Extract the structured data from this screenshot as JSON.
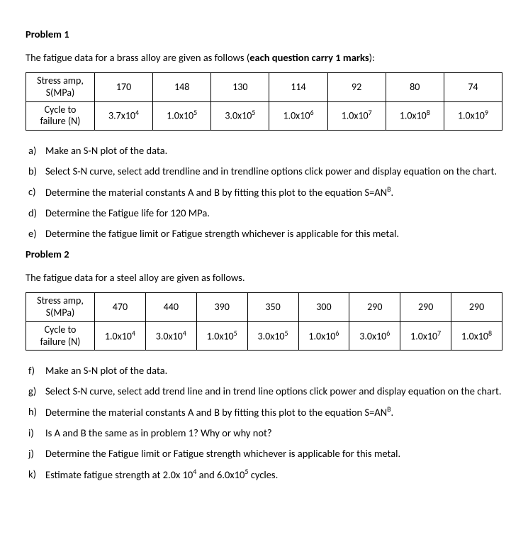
{
  "problem1": {
    "title": "Problem 1",
    "intro_pre": "The fatigue data for a brass alloy are given as follows (",
    "intro_bold": "each question carry 1 marks",
    "intro_post": "):",
    "table": {
      "row1_label_line1": "Stress amp,",
      "row1_label_line2": "S(MPa)",
      "row2_label_line1": "Cycle to",
      "row2_label_line2": "failure (N)",
      "stress": [
        "170",
        "148",
        "130",
        "114",
        "92",
        "80",
        "74"
      ],
      "cycles_base": [
        "3.7x10",
        "1.0x10",
        "3.0x10",
        "1.0x10",
        "1.0x10",
        "1.0x10",
        "1.0x10"
      ],
      "cycles_exp": [
        "4",
        "5",
        "5",
        "6",
        "7",
        "8",
        "9"
      ]
    },
    "questions": [
      {
        "m": "a)",
        "t_plain": "Make an S-N plot of the data."
      },
      {
        "m": "b)",
        "t_plain": "Select S-N curve, select add trendline and in trendline options click power and display equation on the chart."
      },
      {
        "m": "c)",
        "t_html": "Determine the material constants A and B by fitting this plot to the equation S=AN<sup>B</sup>."
      },
      {
        "m": "d)",
        "t_plain": "Determine the Fatigue life for 120 MPa."
      },
      {
        "m": "e)",
        "t_plain": "Determine the fatigue limit or Fatigue strength whichever is applicable for this metal."
      }
    ]
  },
  "problem2": {
    "title": "Problem 2",
    "intro": "The fatigue data for a steel alloy are given as follows.",
    "table": {
      "row1_label_line1": "Stress amp,",
      "row1_label_line2": "S(MPa)",
      "row2_label_line1": "Cycle to",
      "row2_label_line2": "failure (N)",
      "stress": [
        "470",
        "440",
        "390",
        "350",
        "300",
        "290",
        "290",
        "290"
      ],
      "cycles_base": [
        "1.0x10",
        "3.0x10",
        "1.0x10",
        "3.0x10",
        "1.0x10",
        "3.0x10",
        "1.0x10",
        "1.0x10"
      ],
      "cycles_exp": [
        "4",
        "4",
        "5",
        "5",
        "6",
        "6",
        "7",
        "8"
      ]
    },
    "questions": [
      {
        "m": "f)",
        "t_plain": "Make an S-N plot of the data."
      },
      {
        "m": "g)",
        "t_plain": "Select S-N curve, select add trend line and in trend line options click power and display equation on the chart."
      },
      {
        "m": "h)",
        "t_html": "Determine the material constants A and B by fitting this plot to the equation S=AN<sup>B</sup>."
      },
      {
        "m": "i)",
        "t_plain": "Is A and B the same as in problem 1? Why or why not?"
      },
      {
        "m": "j)",
        "t_plain": "Determine the Fatigue limit or Fatigue strength whichever is applicable for this metal."
      },
      {
        "m": "k)",
        "t_html": "Estimate fatigue strength at 2.0x 10<sup>4</sup> and 6.0x10<sup>5</sup> cycles."
      }
    ]
  }
}
